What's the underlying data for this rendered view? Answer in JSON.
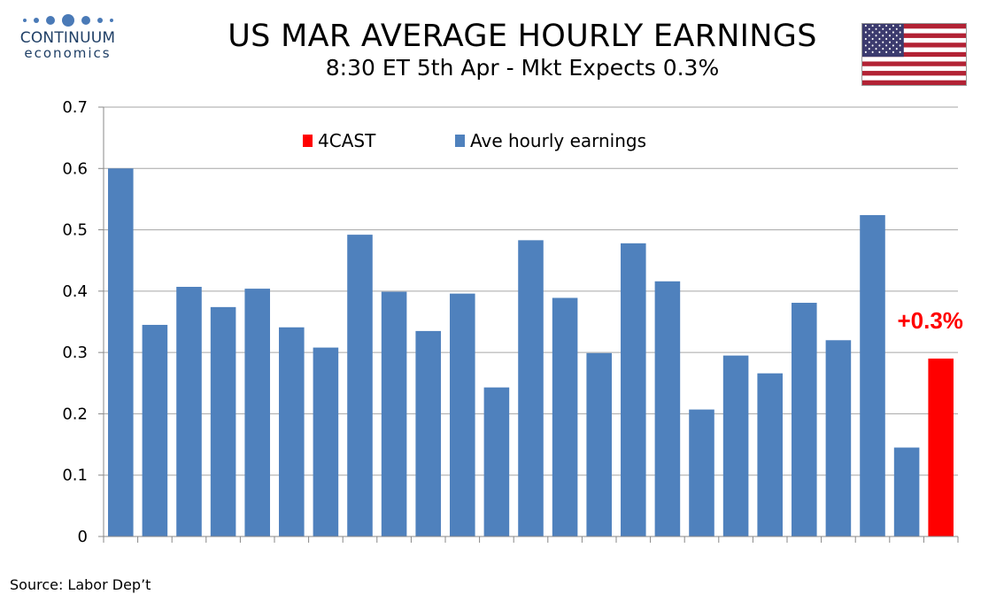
{
  "brand": {
    "name": "CONTINUUM",
    "subname": "economics"
  },
  "header": {
    "title": "US MAR AVERAGE HOURLY EARNINGS",
    "subtitle": "8:30 ET 5th Apr - Mkt Expects 0.3%"
  },
  "footer": {
    "source": "Source: Labor Dep’t"
  },
  "colors": {
    "bar": "#4f81bd",
    "forecast": "#ff0000",
    "axis": "#888888",
    "grid": "#a6a6a6"
  },
  "chart_data": {
    "type": "bar",
    "title": "",
    "xlabel": "",
    "ylabel": "",
    "ylim": [
      0,
      0.7
    ],
    "yticks": [
      0,
      0.1,
      0.2,
      0.3,
      0.4,
      0.5,
      0.6,
      0.7
    ],
    "ytick_labels": [
      "0",
      "0.1",
      "0.2",
      "0.3",
      "0.4",
      "0.5",
      "0.6",
      "0.7"
    ],
    "grid": true,
    "legend_position": "top",
    "series": [
      {
        "name": "Ave hourly earnings",
        "color": "#4f81bd",
        "values": [
          0.6,
          0.345,
          0.407,
          0.374,
          0.404,
          0.341,
          0.308,
          0.492,
          0.399,
          0.335,
          0.396,
          0.243,
          0.483,
          0.389,
          0.299,
          0.478,
          0.416,
          0.207,
          0.295,
          0.266,
          0.381,
          0.32,
          0.524,
          0.145,
          null
        ]
      },
      {
        "name": "4CAST",
        "color": "#ff0000",
        "values": [
          null,
          null,
          null,
          null,
          null,
          null,
          null,
          null,
          null,
          null,
          null,
          null,
          null,
          null,
          null,
          null,
          null,
          null,
          null,
          null,
          null,
          null,
          null,
          null,
          0.29
        ]
      }
    ],
    "legend": [
      {
        "name": "4CAST",
        "color": "#ff0000"
      },
      {
        "name": "Ave hourly earnings",
        "color": "#4f81bd"
      }
    ],
    "annotation": {
      "text": "+0.3%",
      "color": "#ff0000"
    }
  }
}
